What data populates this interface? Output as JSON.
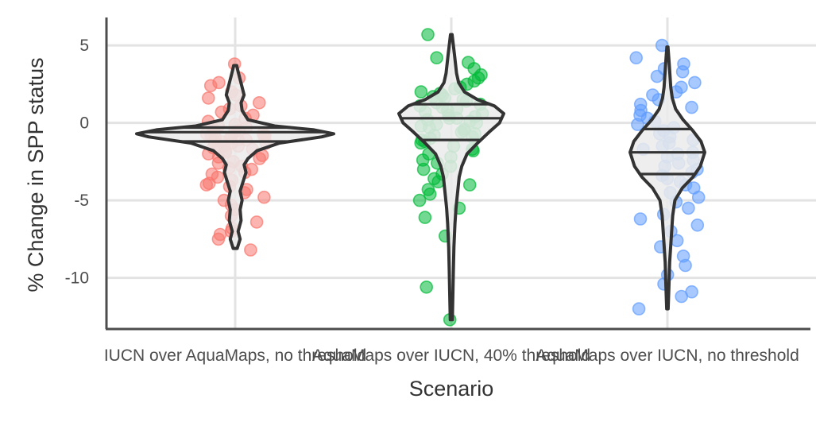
{
  "chart_data": {
    "type": "violin",
    "title": "",
    "xlabel": "Scenario",
    "ylabel": "% Change in SPP status",
    "ylim": [
      -13.3,
      6.8
    ],
    "yticks": [
      5,
      0,
      -5,
      -10
    ],
    "grid": true,
    "legend": "none",
    "categories": [
      "IUCN over AquaMaps, no threshold",
      "AquaMaps over IUCN, 40% threshold",
      "AquaMaps over IUCN, no threshold"
    ],
    "colors": [
      "#f8766d",
      "#00ba38",
      "#619cff"
    ],
    "violins": [
      {
        "min": -8.1,
        "q25": -1.2,
        "median": -0.6,
        "q75": -0.3,
        "max": 3.7,
        "density": [
          {
            "y": -8.1,
            "w": 0.02
          },
          {
            "y": -7.5,
            "w": 0.05
          },
          {
            "y": -7.0,
            "w": 0.03
          },
          {
            "y": -6.3,
            "w": 0.06
          },
          {
            "y": -5.6,
            "w": 0.05
          },
          {
            "y": -5.0,
            "w": 0.07
          },
          {
            "y": -4.4,
            "w": 0.05
          },
          {
            "y": -3.8,
            "w": 0.08
          },
          {
            "y": -3.2,
            "w": 0.11
          },
          {
            "y": -2.7,
            "w": 0.09
          },
          {
            "y": -2.3,
            "w": 0.13
          },
          {
            "y": -1.8,
            "w": 0.22
          },
          {
            "y": -1.3,
            "w": 0.45
          },
          {
            "y": -0.9,
            "w": 0.88
          },
          {
            "y": -0.7,
            "w": 1.0
          },
          {
            "y": -0.45,
            "w": 0.8
          },
          {
            "y": -0.2,
            "w": 0.4
          },
          {
            "y": 0.2,
            "w": 0.13
          },
          {
            "y": 0.8,
            "w": 0.07
          },
          {
            "y": 1.3,
            "w": 0.06
          },
          {
            "y": 1.8,
            "w": 0.09
          },
          {
            "y": 2.3,
            "w": 0.07
          },
          {
            "y": 2.8,
            "w": 0.05
          },
          {
            "y": 3.3,
            "w": 0.03
          },
          {
            "y": 3.7,
            "w": 0.015
          }
        ],
        "points": [
          3.8,
          2.9,
          2.4,
          2.6,
          2.0,
          1.8,
          1.6,
          1.3,
          1.1,
          0.9,
          0.7,
          0.5,
          0.3,
          0.1,
          -0.1,
          -0.2,
          -0.3,
          -0.4,
          -0.5,
          -0.6,
          -0.6,
          -0.7,
          -0.7,
          -0.8,
          -0.8,
          -0.9,
          -0.9,
          -1.0,
          -1.0,
          -1.1,
          -1.1,
          -1.2,
          -1.2,
          -1.3,
          -1.3,
          -1.4,
          -1.5,
          -1.5,
          -1.6,
          -1.7,
          -1.8,
          -1.9,
          -2.0,
          -2.1,
          -2.2,
          -2.3,
          -2.5,
          -2.6,
          -2.8,
          -2.9,
          -3.0,
          -3.2,
          -3.3,
          -3.5,
          -3.7,
          -3.9,
          -4.0,
          -4.1,
          -4.3,
          -4.5,
          -4.8,
          -5.0,
          -5.3,
          -5.6,
          -6.0,
          -6.4,
          -6.8,
          -7.0,
          -7.2,
          -7.5,
          -8.2
        ]
      },
      {
        "min": -12.7,
        "q25": -1.1,
        "median": 0.3,
        "q75": 1.2,
        "max": 5.7,
        "density": [
          {
            "y": -12.7,
            "w": 0.02
          },
          {
            "y": -11.0,
            "w": 0.03
          },
          {
            "y": -9.5,
            "w": 0.04
          },
          {
            "y": -8.0,
            "w": 0.05
          },
          {
            "y": -6.5,
            "w": 0.07
          },
          {
            "y": -5.5,
            "w": 0.09
          },
          {
            "y": -4.5,
            "w": 0.12
          },
          {
            "y": -3.5,
            "w": 0.15
          },
          {
            "y": -2.8,
            "w": 0.2
          },
          {
            "y": -2.0,
            "w": 0.3
          },
          {
            "y": -1.3,
            "w": 0.5
          },
          {
            "y": -0.6,
            "w": 0.72
          },
          {
            "y": 0.0,
            "w": 0.92
          },
          {
            "y": 0.6,
            "w": 1.0
          },
          {
            "y": 1.1,
            "w": 0.82
          },
          {
            "y": 1.5,
            "w": 0.5
          },
          {
            "y": 2.0,
            "w": 0.25
          },
          {
            "y": 2.6,
            "w": 0.14
          },
          {
            "y": 3.2,
            "w": 0.1
          },
          {
            "y": 3.8,
            "w": 0.08
          },
          {
            "y": 4.4,
            "w": 0.06
          },
          {
            "y": 5.0,
            "w": 0.04
          },
          {
            "y": 5.7,
            "w": 0.015
          }
        ],
        "points": [
          5.7,
          4.2,
          3.9,
          3.5,
          3.1,
          2.9,
          2.7,
          2.5,
          2.3,
          2.2,
          2.0,
          1.9,
          1.8,
          1.7,
          1.6,
          1.5,
          1.4,
          1.3,
          1.2,
          1.1,
          1.0,
          0.9,
          0.8,
          0.7,
          0.6,
          0.5,
          0.4,
          0.3,
          0.3,
          0.2,
          0.1,
          0.0,
          -0.1,
          -0.2,
          -0.3,
          -0.4,
          -0.5,
          -0.6,
          -0.7,
          -0.8,
          -0.9,
          -1.0,
          -1.1,
          -1.2,
          -1.3,
          -1.5,
          -1.7,
          -1.8,
          -2.0,
          -2.2,
          -2.4,
          -2.6,
          -2.8,
          -3.0,
          -3.3,
          -3.6,
          -3.8,
          -4.0,
          -4.3,
          -4.6,
          -5.0,
          -5.5,
          -6.1,
          -7.3,
          -10.6,
          -12.7
        ]
      },
      {
        "min": -12.0,
        "q25": -3.3,
        "median": -1.9,
        "q75": -0.4,
        "max": 4.9,
        "density": [
          {
            "y": -12.0,
            "w": 0.02
          },
          {
            "y": -10.5,
            "w": 0.04
          },
          {
            "y": -9.0,
            "w": 0.06
          },
          {
            "y": -7.5,
            "w": 0.1
          },
          {
            "y": -6.0,
            "w": 0.14
          },
          {
            "y": -5.0,
            "w": 0.2
          },
          {
            "y": -4.2,
            "w": 0.4
          },
          {
            "y": -3.5,
            "w": 0.68
          },
          {
            "y": -2.8,
            "w": 0.88
          },
          {
            "y": -1.9,
            "w": 1.0
          },
          {
            "y": -1.2,
            "w": 0.9
          },
          {
            "y": -0.5,
            "w": 0.68
          },
          {
            "y": 0.2,
            "w": 0.42
          },
          {
            "y": 0.9,
            "w": 0.22
          },
          {
            "y": 1.6,
            "w": 0.13
          },
          {
            "y": 2.3,
            "w": 0.09
          },
          {
            "y": 3.0,
            "w": 0.07
          },
          {
            "y": 3.7,
            "w": 0.05
          },
          {
            "y": 4.4,
            "w": 0.03
          },
          {
            "y": 4.9,
            "w": 0.015
          }
        ],
        "points": [
          5.0,
          4.2,
          3.8,
          3.5,
          3.3,
          3.0,
          2.6,
          2.3,
          2.0,
          1.8,
          1.5,
          1.2,
          1.0,
          0.8,
          0.5,
          0.3,
          0.1,
          -0.1,
          -0.3,
          -0.5,
          -0.7,
          -0.9,
          -1.1,
          -1.3,
          -1.5,
          -1.7,
          -1.9,
          -2.0,
          -2.2,
          -2.4,
          -2.6,
          -2.8,
          -3.0,
          -3.2,
          -3.4,
          -3.6,
          -3.8,
          -4.0,
          -4.2,
          -4.5,
          -4.8,
          -5.1,
          -5.5,
          -5.9,
          -6.2,
          -6.6,
          -7.0,
          -7.6,
          -8.0,
          -8.6,
          -9.2,
          -9.8,
          -10.4,
          -10.9,
          -11.2,
          -12.0
        ]
      }
    ]
  }
}
